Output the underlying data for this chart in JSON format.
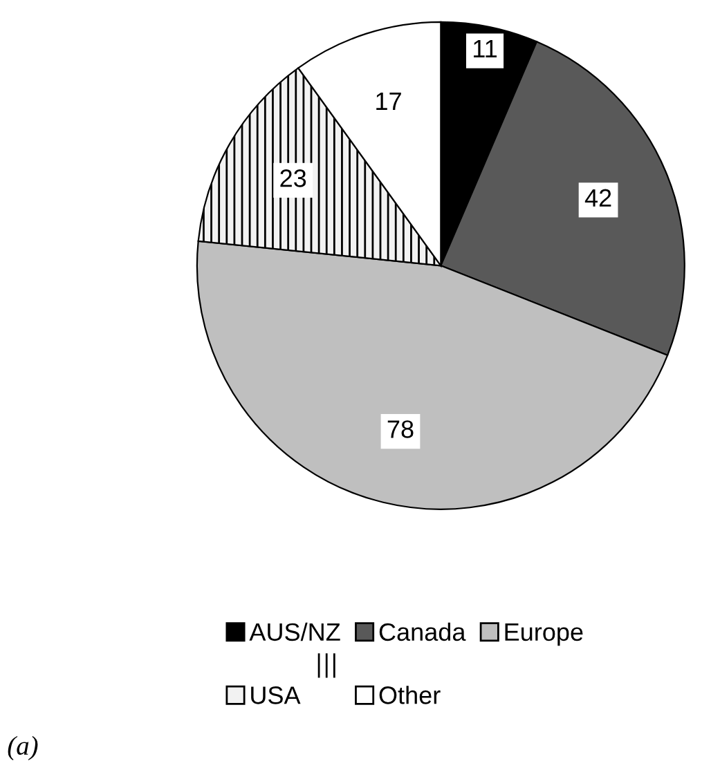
{
  "chart_data": {
    "type": "pie",
    "categories": [
      "AUS/NZ",
      "Canada",
      "Europe",
      "USA",
      "Other"
    ],
    "values": [
      11,
      42,
      78,
      23,
      17
    ],
    "colors": [
      "#000000",
      "#595959",
      "#bfbfbf",
      "#f2f2f2",
      "#ffffff"
    ],
    "data_labels": true,
    "legend": "bottom",
    "annotations": [
      "(a)"
    ]
  }
}
